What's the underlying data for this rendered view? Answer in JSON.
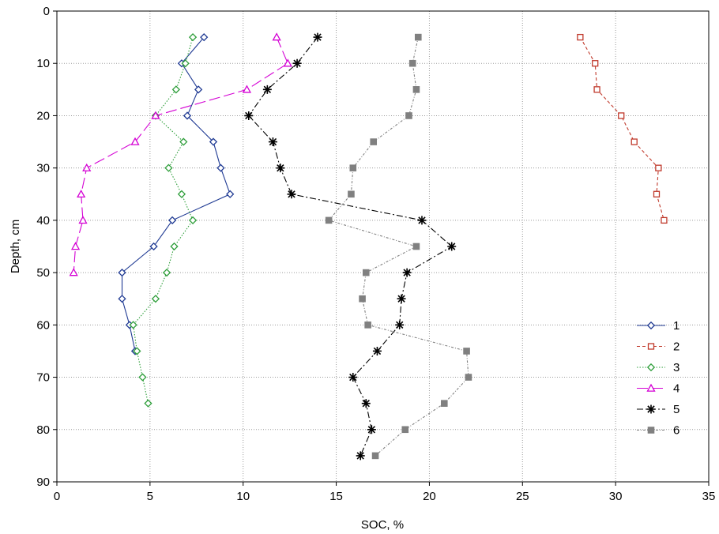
{
  "chart_data": {
    "type": "line",
    "title": "",
    "xlabel": "SOC, %",
    "ylabel": "Depth, cm",
    "xlim": [
      0,
      35
    ],
    "ylim": [
      90,
      0
    ],
    "y_axis_inverted": true,
    "x_ticks": [
      0,
      5,
      10,
      15,
      20,
      25,
      30,
      35
    ],
    "y_ticks": [
      0,
      10,
      20,
      30,
      40,
      50,
      60,
      70,
      80,
      90
    ],
    "grid": true,
    "legend_position": "bottom-right",
    "series": [
      {
        "name": "1",
        "color": "#1f3a93",
        "line_style": "solid",
        "marker": "diamond-open",
        "points": [
          [
            7.9,
            5
          ],
          [
            6.7,
            10
          ],
          [
            7.6,
            15
          ],
          [
            7.0,
            20
          ],
          [
            8.4,
            25
          ],
          [
            8.8,
            30
          ],
          [
            9.3,
            35
          ],
          [
            6.2,
            40
          ],
          [
            5.2,
            45
          ],
          [
            3.5,
            50
          ],
          [
            3.5,
            55
          ],
          [
            3.9,
            60
          ],
          [
            4.2,
            65
          ]
        ]
      },
      {
        "name": "2",
        "color": "#c0392b",
        "line_style": "dashed",
        "marker": "square-open",
        "points": [
          [
            28.1,
            5
          ],
          [
            28.9,
            10
          ],
          [
            29.0,
            15
          ],
          [
            30.3,
            20
          ],
          [
            31.0,
            25
          ],
          [
            32.3,
            30
          ],
          [
            32.2,
            35
          ],
          [
            32.6,
            40
          ]
        ]
      },
      {
        "name": "3",
        "color": "#2e9e3a",
        "line_style": "dotted",
        "marker": "diamond-open",
        "points": [
          [
            7.3,
            5
          ],
          [
            6.9,
            10
          ],
          [
            6.4,
            15
          ],
          [
            5.3,
            20
          ],
          [
            6.8,
            25
          ],
          [
            6.0,
            30
          ],
          [
            6.7,
            35
          ],
          [
            7.3,
            40
          ],
          [
            6.3,
            45
          ],
          [
            5.9,
            50
          ],
          [
            5.3,
            55
          ],
          [
            4.1,
            60
          ],
          [
            4.3,
            65
          ],
          [
            4.6,
            70
          ],
          [
            4.9,
            75
          ]
        ]
      },
      {
        "name": "4",
        "color": "#d400d4",
        "line_style": "long-dash",
        "marker": "triangle-open",
        "points": [
          [
            11.8,
            5
          ],
          [
            12.4,
            10
          ],
          [
            10.2,
            15
          ],
          [
            5.3,
            20
          ],
          [
            4.2,
            25
          ],
          [
            1.6,
            30
          ],
          [
            1.3,
            35
          ],
          [
            1.4,
            40
          ],
          [
            1.0,
            45
          ],
          [
            0.9,
            50
          ]
        ]
      },
      {
        "name": "5",
        "color": "#000000",
        "line_style": "dash-dot",
        "marker": "asterisk",
        "points": [
          [
            14.0,
            5
          ],
          [
            12.9,
            10
          ],
          [
            11.3,
            15
          ],
          [
            10.3,
            20
          ],
          [
            11.6,
            25
          ],
          [
            12.0,
            30
          ],
          [
            12.6,
            35
          ],
          [
            19.6,
            40
          ],
          [
            21.2,
            45
          ],
          [
            18.8,
            50
          ],
          [
            18.5,
            55
          ],
          [
            18.4,
            60
          ],
          [
            17.2,
            65
          ],
          [
            15.9,
            70
          ],
          [
            16.6,
            75
          ],
          [
            16.9,
            80
          ],
          [
            16.3,
            85
          ]
        ]
      },
      {
        "name": "6",
        "color": "#808080",
        "line_style": "dash-dot-fine",
        "marker": "square-filled",
        "points": [
          [
            19.4,
            5
          ],
          [
            19.1,
            10
          ],
          [
            19.3,
            15
          ],
          [
            18.9,
            20
          ],
          [
            17.0,
            25
          ],
          [
            15.9,
            30
          ],
          [
            15.8,
            35
          ],
          [
            14.6,
            40
          ],
          [
            19.3,
            45
          ],
          [
            16.6,
            50
          ],
          [
            16.4,
            55
          ],
          [
            16.7,
            60
          ],
          [
            22.0,
            65
          ],
          [
            22.1,
            70
          ],
          [
            20.8,
            75
          ],
          [
            18.7,
            80
          ],
          [
            17.1,
            85
          ]
        ]
      }
    ]
  }
}
